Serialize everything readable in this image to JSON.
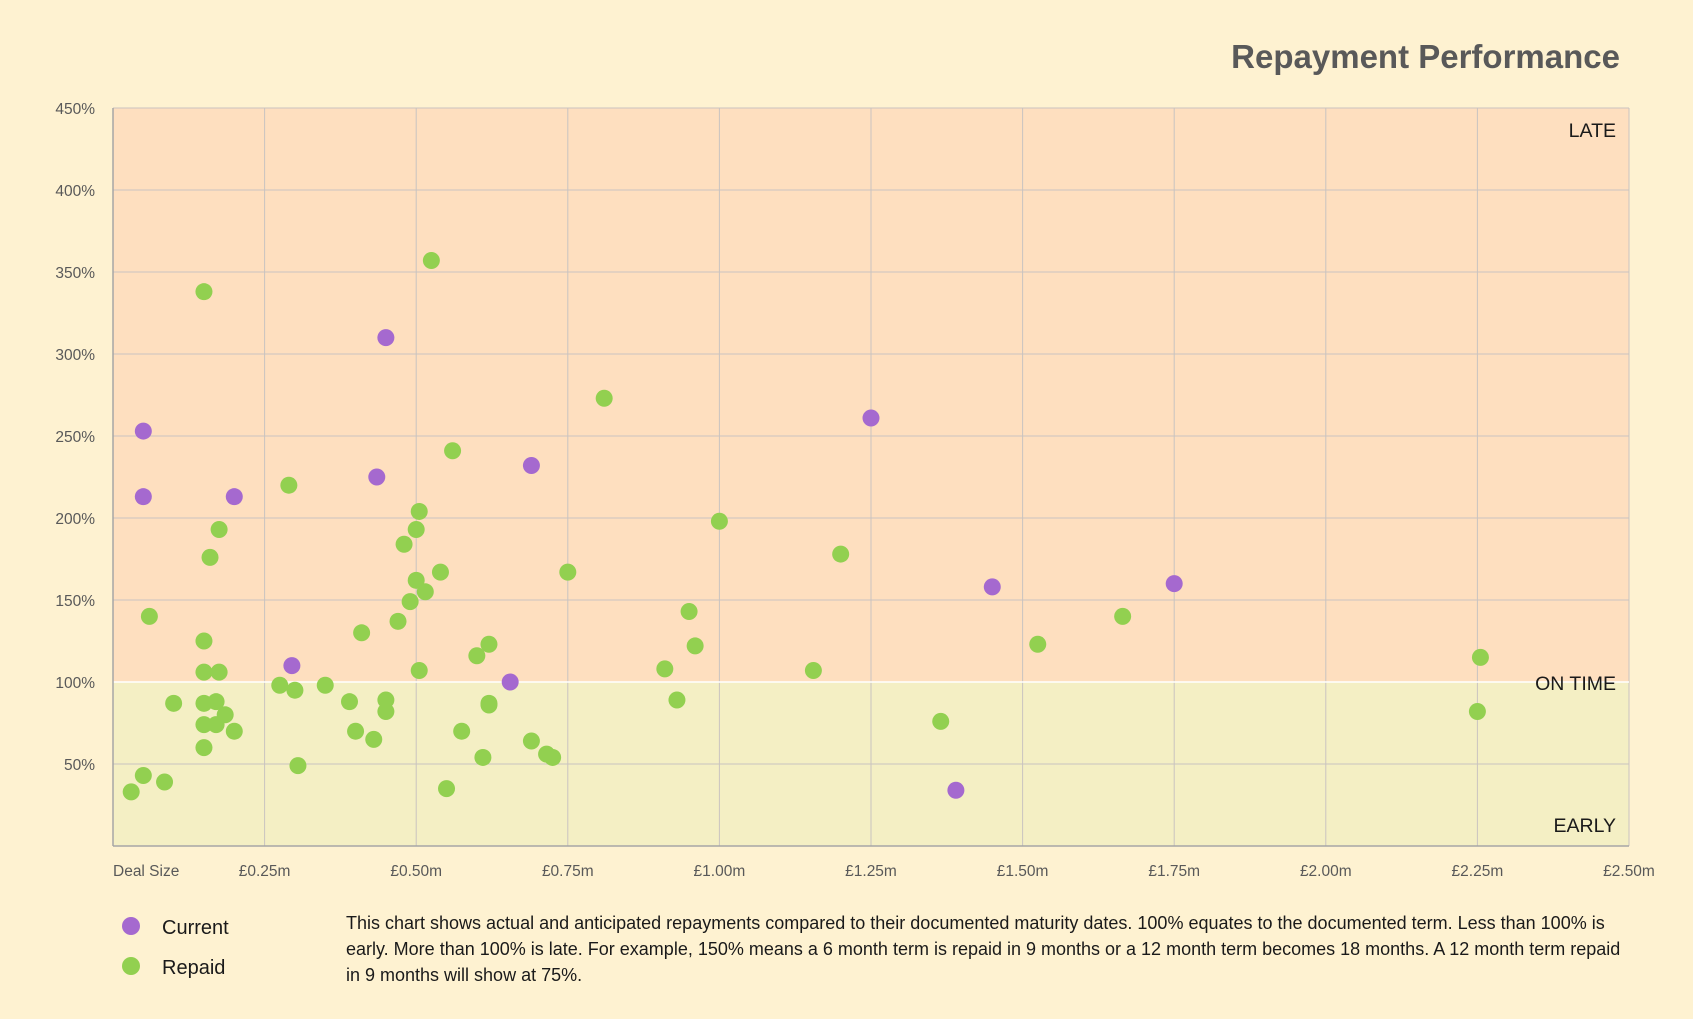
{
  "chart_data": {
    "type": "scatter",
    "title": "Repayment Performance",
    "xlabel": "Deal Size",
    "ylabel": "",
    "xlim": [
      0,
      2.5
    ],
    "ylim": [
      0,
      450
    ],
    "x_unit": "£m",
    "y_unit": "%",
    "x_ticks": [
      0.25,
      0.5,
      0.75,
      1.0,
      1.25,
      1.5,
      1.75,
      2.0,
      2.25,
      2.5
    ],
    "x_tick_labels": [
      "£0.25m",
      "£0.50m",
      "£0.75m",
      "£1.00m",
      "£1.25m",
      "£1.50m",
      "£1.75m",
      "£2.00m",
      "£2.25m",
      "£2.50m"
    ],
    "y_ticks": [
      50,
      100,
      150,
      200,
      250,
      300,
      350,
      400,
      450
    ],
    "y_tick_labels": [
      "50%",
      "100%",
      "150%",
      "200%",
      "250%",
      "300%",
      "350%",
      "400%",
      "450%"
    ],
    "grid": true,
    "zones": [
      {
        "label": "LATE",
        "from": 100,
        "to": 450,
        "color": "#fedfbf"
      },
      {
        "label": "ON TIME",
        "at": 100
      },
      {
        "label": "EARLY",
        "from": 0,
        "to": 100,
        "color": "#f4efc4"
      }
    ],
    "legend_position": "bottom-left",
    "series": [
      {
        "name": "Current",
        "color": "#a569cf",
        "points": [
          [
            0.05,
            253
          ],
          [
            0.05,
            213
          ],
          [
            0.2,
            213
          ],
          [
            0.295,
            110
          ],
          [
            0.435,
            225
          ],
          [
            0.45,
            310
          ],
          [
            0.655,
            100
          ],
          [
            0.69,
            232
          ],
          [
            1.25,
            261
          ],
          [
            1.39,
            34
          ],
          [
            1.45,
            158
          ],
          [
            1.75,
            160
          ]
        ]
      },
      {
        "name": "Repaid",
        "color": "#92d050",
        "points": [
          [
            0.03,
            33
          ],
          [
            0.05,
            43
          ],
          [
            0.06,
            140
          ],
          [
            0.085,
            39
          ],
          [
            0.1,
            87
          ],
          [
            0.15,
            338
          ],
          [
            0.15,
            125
          ],
          [
            0.15,
            106
          ],
          [
            0.15,
            87
          ],
          [
            0.15,
            74
          ],
          [
            0.15,
            60
          ],
          [
            0.16,
            176
          ],
          [
            0.17,
            88
          ],
          [
            0.17,
            74
          ],
          [
            0.175,
            193
          ],
          [
            0.175,
            106
          ],
          [
            0.185,
            80
          ],
          [
            0.2,
            70
          ],
          [
            0.275,
            98
          ],
          [
            0.29,
            220
          ],
          [
            0.3,
            95
          ],
          [
            0.305,
            49
          ],
          [
            0.35,
            98
          ],
          [
            0.39,
            88
          ],
          [
            0.4,
            70
          ],
          [
            0.41,
            130
          ],
          [
            0.43,
            65
          ],
          [
            0.45,
            89
          ],
          [
            0.45,
            82
          ],
          [
            0.47,
            137
          ],
          [
            0.48,
            184
          ],
          [
            0.49,
            149
          ],
          [
            0.5,
            193
          ],
          [
            0.5,
            162
          ],
          [
            0.505,
            204
          ],
          [
            0.505,
            107
          ],
          [
            0.515,
            155
          ],
          [
            0.525,
            357
          ],
          [
            0.54,
            167
          ],
          [
            0.55,
            35
          ],
          [
            0.56,
            241
          ],
          [
            0.575,
            70
          ],
          [
            0.6,
            116
          ],
          [
            0.61,
            54
          ],
          [
            0.62,
            123
          ],
          [
            0.62,
            87
          ],
          [
            0.62,
            86
          ],
          [
            0.69,
            64
          ],
          [
            0.715,
            56
          ],
          [
            0.725,
            54
          ],
          [
            0.75,
            167
          ],
          [
            0.81,
            273
          ],
          [
            0.91,
            108
          ],
          [
            0.93,
            89
          ],
          [
            0.95,
            143
          ],
          [
            0.96,
            122
          ],
          [
            1.0,
            198
          ],
          [
            1.155,
            107
          ],
          [
            1.2,
            178
          ],
          [
            1.365,
            76
          ],
          [
            1.525,
            123
          ],
          [
            1.665,
            140
          ],
          [
            2.25,
            82
          ],
          [
            2.255,
            115
          ]
        ]
      }
    ]
  },
  "footnote": "This chart shows actual and anticipated repayments compared to their documented maturity dates.  100% equates to the documented term.  Less than 100% is early.  More than 100% is late.  For example, 150% means a 6 month term is repaid in 9 months or a 12 month term becomes 18 months.  A 12 month term repaid in 9 months will show at 75%."
}
